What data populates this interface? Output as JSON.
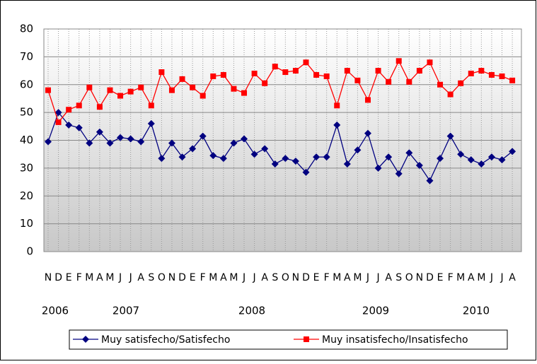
{
  "chart_data": {
    "type": "line",
    "categories": [
      "N",
      "D",
      "E",
      "F",
      "M",
      "A",
      "M",
      "J",
      "J",
      "A",
      "S",
      "O",
      "N",
      "D",
      "E",
      "F",
      "M",
      "A",
      "M",
      "J",
      "J",
      "A",
      "S",
      "O",
      "N",
      "D",
      "E",
      "F",
      "M",
      "A",
      "M",
      "J",
      "J",
      "A",
      "S",
      "O",
      "N",
      "D",
      "E",
      "F",
      "M",
      "A",
      "M",
      "J",
      "J",
      "A"
    ],
    "years": [
      "2006",
      "2007",
      "2008",
      "2009",
      "2010"
    ],
    "series": [
      {
        "name": "Muy satisfecho/Satisfecho",
        "color": "#000080",
        "marker": "diamond",
        "values": [
          39.5,
          50,
          45.5,
          44.5,
          39,
          43,
          39,
          41,
          40.5,
          39.5,
          46,
          33.5,
          39,
          34,
          37,
          41.5,
          34.5,
          33.5,
          39,
          40.5,
          35,
          37,
          31.5,
          33.5,
          32.5,
          28.5,
          34,
          34,
          45.5,
          31.5,
          36.5,
          42.5,
          30,
          34,
          28,
          35.5,
          31,
          25.5,
          33.5,
          41.5,
          35,
          33,
          31.5,
          34,
          33,
          36
        ]
      },
      {
        "name": "Muy insatisfecho/Insatisfecho",
        "color": "#ff0000",
        "marker": "square",
        "values": [
          58,
          46.5,
          51,
          52.5,
          59,
          52,
          58,
          56,
          57.5,
          59,
          52.5,
          64.5,
          58,
          62,
          59,
          56,
          63,
          63.5,
          58.5,
          57,
          64,
          60.5,
          66.5,
          64.5,
          65,
          68,
          63.5,
          63,
          52.5,
          65,
          61.5,
          54.5,
          65,
          61,
          68.5,
          61,
          65,
          68,
          60,
          56.5,
          60.5,
          64,
          65,
          63.5,
          63,
          61.5
        ]
      }
    ],
    "ylim": [
      0,
      80
    ],
    "yticks": [
      0,
      10,
      20,
      30,
      40,
      50,
      60,
      70,
      80
    ],
    "grid": true
  }
}
